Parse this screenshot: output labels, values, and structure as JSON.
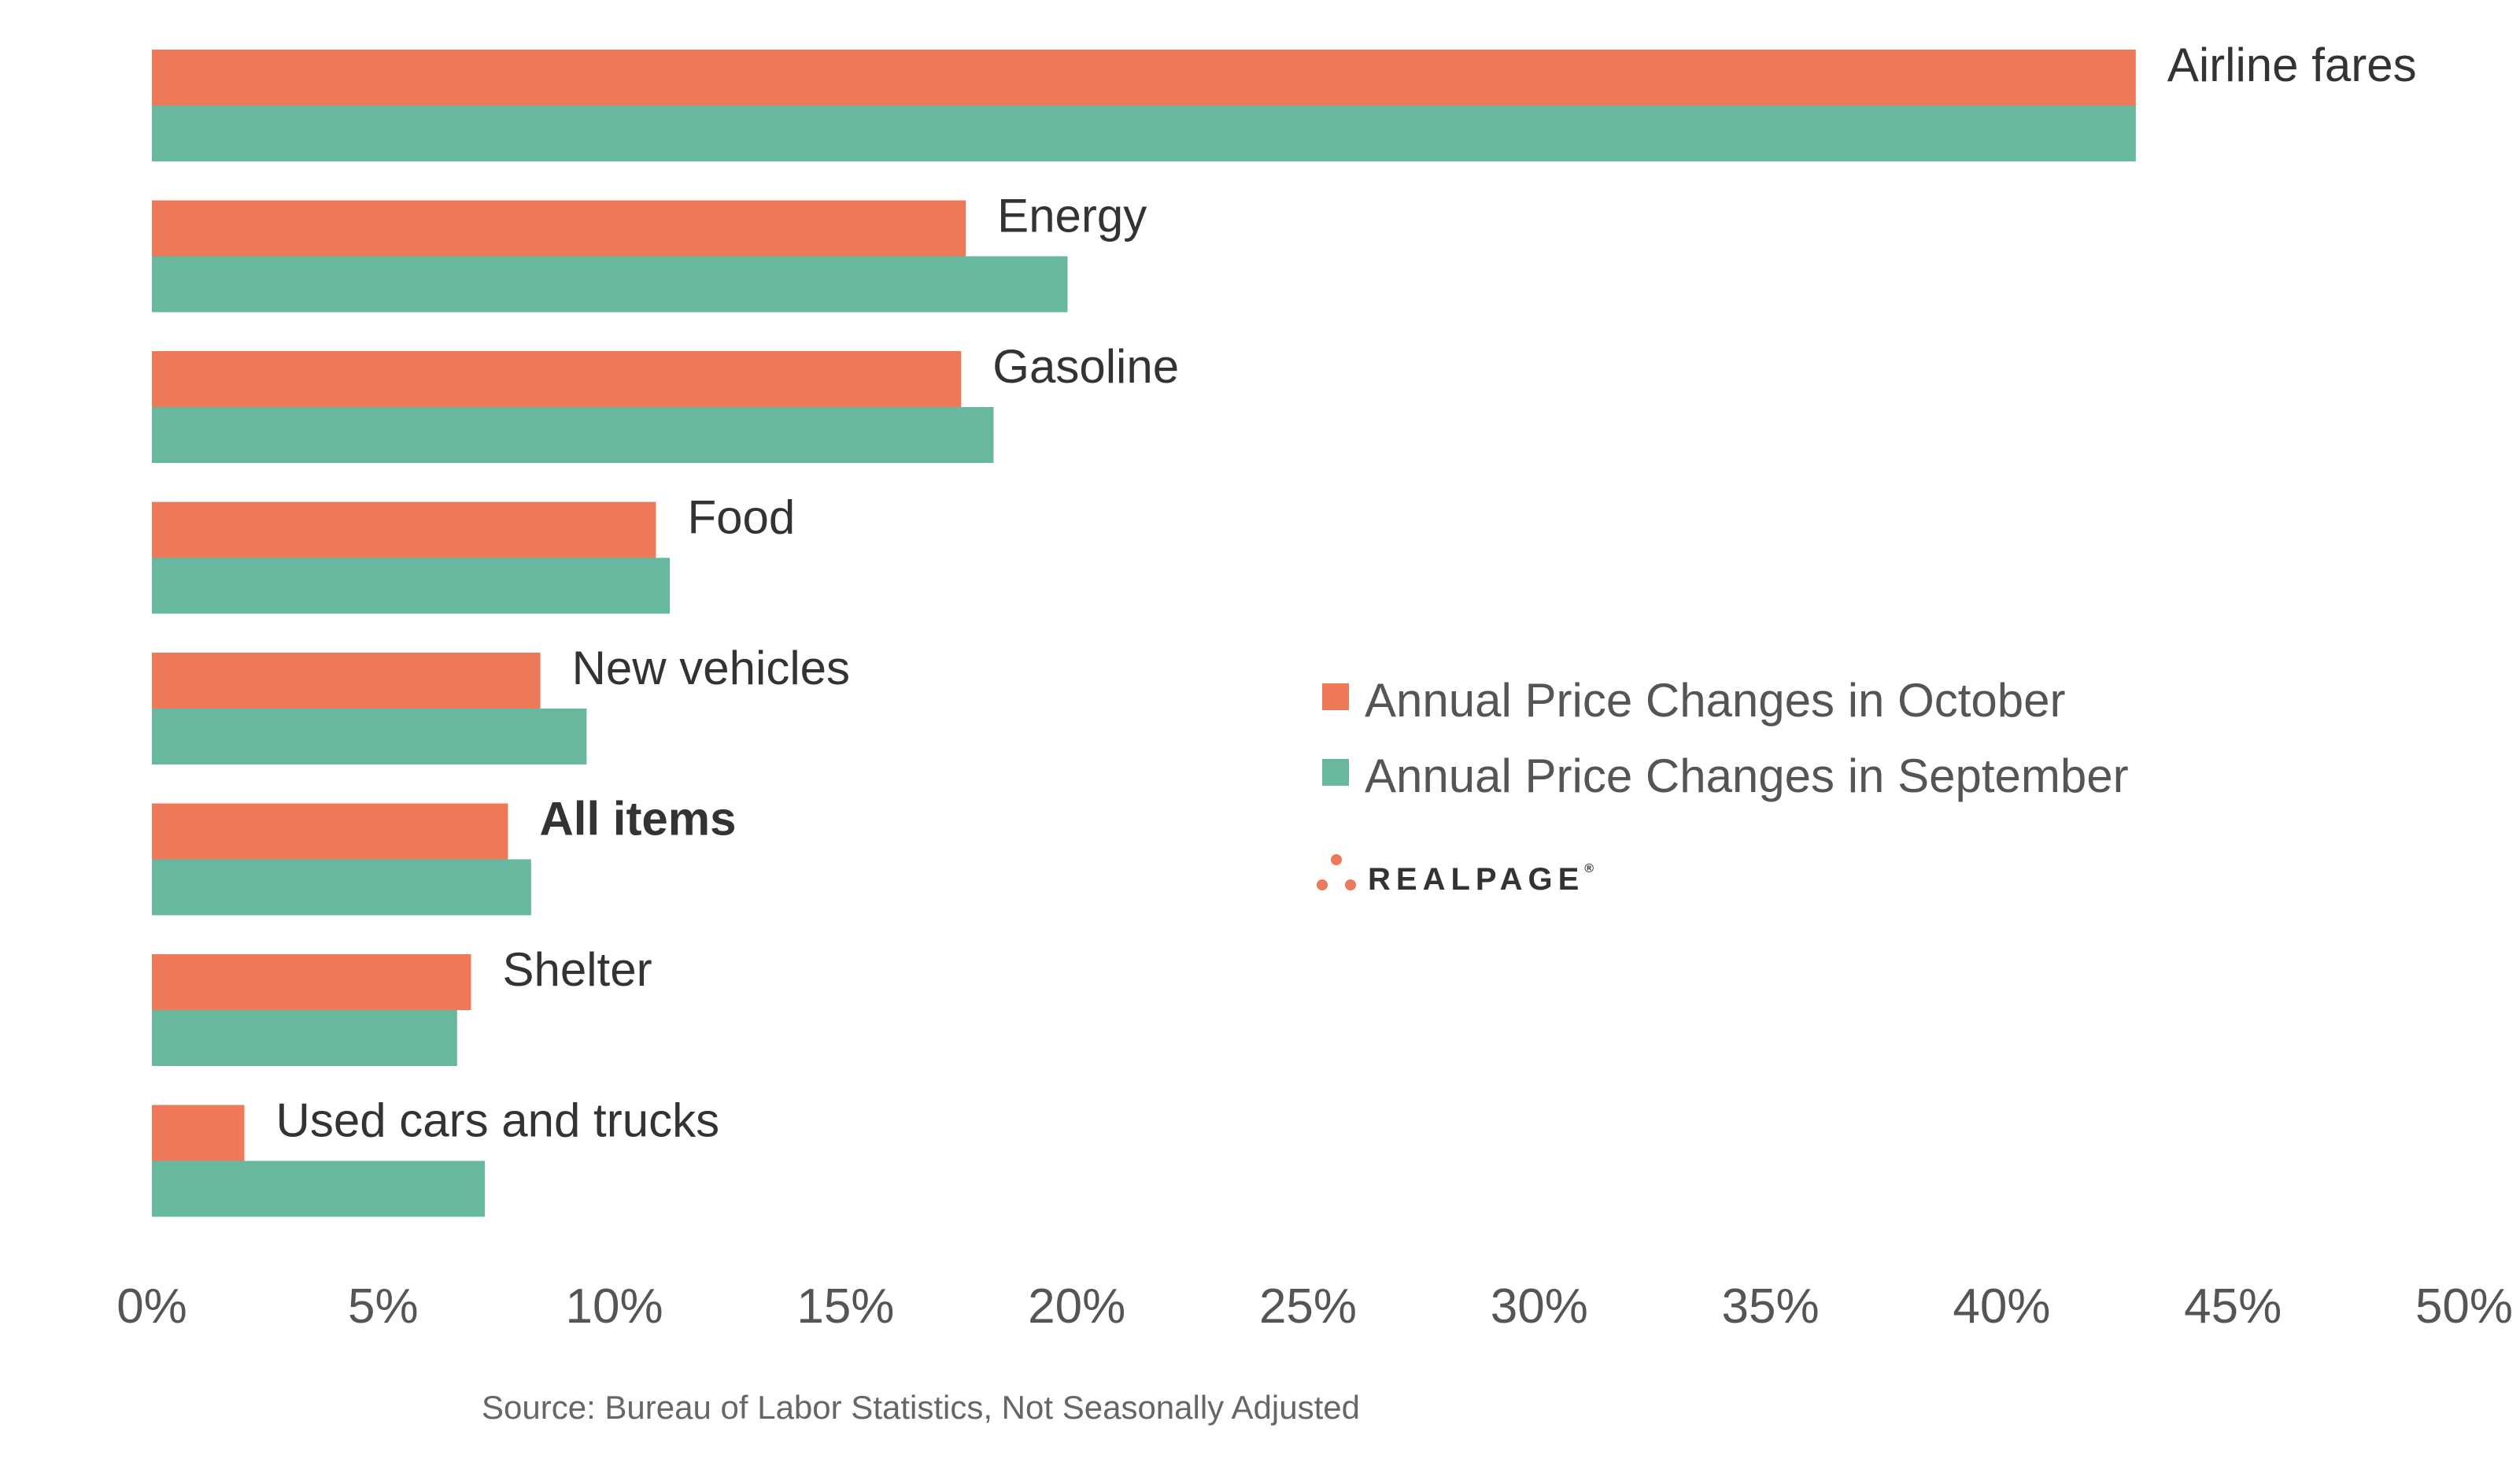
{
  "chart_data": {
    "type": "bar",
    "orientation": "horizontal",
    "categories": [
      "Airline fares",
      "Energy",
      "Gasoline",
      "Food",
      "New vehicles",
      "All items",
      "Shelter",
      "Used cars and trucks"
    ],
    "bold_categories": [
      "All items"
    ],
    "series": [
      {
        "name": "Annual Price Changes in October",
        "color": "#EE7959",
        "values": [
          42.9,
          17.6,
          17.5,
          10.9,
          8.4,
          7.7,
          6.9,
          2.0
        ]
      },
      {
        "name": "Annual Price Changes in September",
        "color": "#67B89E",
        "values": [
          42.9,
          19.8,
          18.2,
          11.2,
          9.4,
          8.2,
          6.6,
          7.2
        ]
      }
    ],
    "xlim": [
      0,
      50
    ],
    "xticks": [
      0,
      5,
      10,
      15,
      20,
      25,
      30,
      35,
      40,
      45,
      50
    ],
    "xtick_labels": [
      "0%",
      "5%",
      "10%",
      "15%",
      "20%",
      "25%",
      "30%",
      "35%",
      "40%",
      "45%",
      "50%"
    ],
    "xlabel": "",
    "ylabel": "",
    "title": "",
    "grid": false,
    "legend_position": "center-right"
  },
  "source": "Source: Bureau of Labor Statistics, Not Seasonally Adjusted",
  "brand": {
    "name": "REALPAGE",
    "trademark": "®",
    "dot_color": "#EE7959"
  }
}
